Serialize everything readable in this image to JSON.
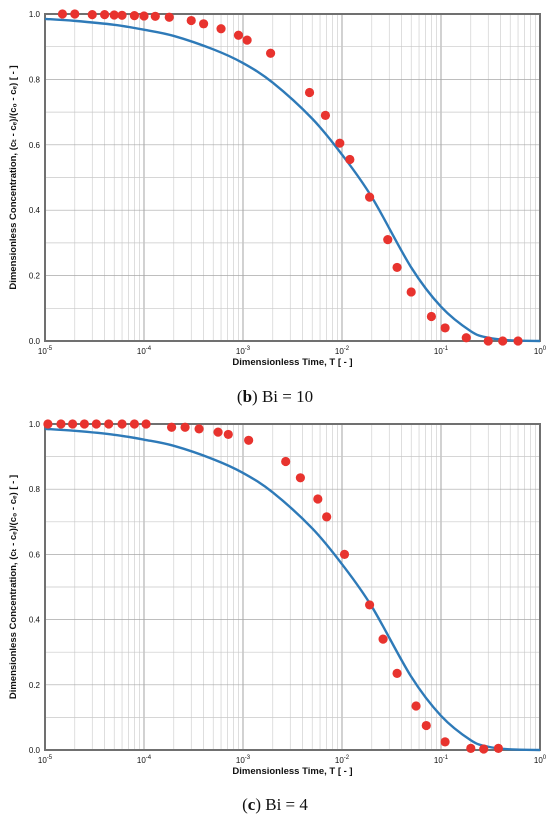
{
  "chart_data": [
    {
      "type": "scatter",
      "caption_letter": "b",
      "caption_rest": ") Bi = 10",
      "xlabel": "Dimensionless Time, T  [ - ]",
      "ylabel": "Dimensionless Concentration, (cₜ - cₑ)/(c₀ - cₑ)  [ - ]",
      "x_scale": "log",
      "xlim": [
        1e-05,
        1
      ],
      "ylim": [
        0,
        1
      ],
      "grid": true,
      "x_ticks": [
        {
          "value": 1e-05,
          "base": "10",
          "exp": "-5"
        },
        {
          "value": 0.0001,
          "base": "10",
          "exp": "-4"
        },
        {
          "value": 0.001,
          "base": "10",
          "exp": "-3"
        },
        {
          "value": 0.01,
          "base": "10",
          "exp": "-2"
        },
        {
          "value": 0.1,
          "base": "10",
          "exp": "-1"
        },
        {
          "value": 1,
          "base": "10",
          "exp": "0"
        }
      ],
      "y_ticks": [
        "0.0",
        "0.2",
        "0.4",
        "0.6",
        "0.8",
        "1.0"
      ],
      "series": [
        {
          "kind": "line",
          "color": "#2e7ab8",
          "x": [
            1e-05,
            2e-05,
            5e-05,
            0.0001,
            0.0002,
            0.0005,
            0.001,
            0.002,
            0.005,
            0.01,
            0.02,
            0.05,
            0.1,
            0.2,
            0.3,
            0.5,
            1
          ],
          "y": [
            0.985,
            0.979,
            0.967,
            0.952,
            0.933,
            0.892,
            0.85,
            0.79,
            0.68,
            0.57,
            0.44,
            0.225,
            0.105,
            0.03,
            0.01,
            0.002,
            0.0
          ]
        },
        {
          "kind": "points",
          "color": "#e8332e",
          "x": [
            1.5e-05,
            2e-05,
            3e-05,
            4e-05,
            5e-05,
            6e-05,
            8e-05,
            0.0001,
            0.00013,
            0.00018,
            0.0003,
            0.0004,
            0.0006,
            0.0009,
            0.0011,
            0.0019,
            0.0047,
            0.0068,
            0.0095,
            0.012,
            0.019,
            0.029,
            0.036,
            0.05,
            0.08,
            0.11,
            0.18,
            0.3,
            0.42,
            0.6
          ],
          "y": [
            1.0,
            1.0,
            0.998,
            0.998,
            0.997,
            0.996,
            0.995,
            0.994,
            0.993,
            0.99,
            0.98,
            0.97,
            0.955,
            0.935,
            0.92,
            0.88,
            0.76,
            0.69,
            0.605,
            0.555,
            0.44,
            0.31,
            0.225,
            0.15,
            0.075,
            0.04,
            0.01,
            0.0,
            0.0,
            0.0
          ]
        }
      ]
    },
    {
      "type": "scatter",
      "caption_letter": "c",
      "caption_rest": ") Bi = 4",
      "xlabel": "Dimensionless Time, T  [ - ]",
      "ylabel": "Dimensionless Concentration, (cₜ - cₑ)/(c₀ - cₑ)  [ - ]",
      "x_scale": "log",
      "xlim": [
        1e-05,
        1
      ],
      "ylim": [
        0,
        1
      ],
      "grid": true,
      "x_ticks": [
        {
          "value": 1e-05,
          "base": "10",
          "exp": "-5"
        },
        {
          "value": 0.0001,
          "base": "10",
          "exp": "-4"
        },
        {
          "value": 0.001,
          "base": "10",
          "exp": "-3"
        },
        {
          "value": 0.01,
          "base": "10",
          "exp": "-2"
        },
        {
          "value": 0.1,
          "base": "10",
          "exp": "-1"
        },
        {
          "value": 1,
          "base": "10",
          "exp": "0"
        }
      ],
      "y_ticks": [
        "0.0",
        "0.2",
        "0.4",
        "0.6",
        "0.8",
        "1.0"
      ],
      "series": [
        {
          "kind": "line",
          "color": "#2e7ab8",
          "x": [
            1e-05,
            2e-05,
            5e-05,
            0.0001,
            0.0002,
            0.0005,
            0.001,
            0.002,
            0.005,
            0.01,
            0.02,
            0.05,
            0.1,
            0.2,
            0.3,
            0.5,
            1
          ],
          "y": [
            0.985,
            0.979,
            0.967,
            0.952,
            0.933,
            0.892,
            0.85,
            0.79,
            0.68,
            0.57,
            0.44,
            0.225,
            0.105,
            0.03,
            0.01,
            0.002,
            0.0
          ]
        },
        {
          "kind": "points",
          "color": "#e8332e",
          "x": [
            1.07e-05,
            1.45e-05,
            1.9e-05,
            2.5e-05,
            3.3e-05,
            4.4e-05,
            6e-05,
            8e-05,
            0.000105,
            0.00019,
            0.00026,
            0.00036,
            0.00056,
            0.00071,
            0.00114,
            0.0027,
            0.0038,
            0.0057,
            0.007,
            0.0106,
            0.019,
            0.026,
            0.036,
            0.056,
            0.071,
            0.11,
            0.2,
            0.27,
            0.38
          ],
          "y": [
            1.0,
            1.0,
            1.0,
            1.0,
            1.0,
            1.0,
            1.0,
            1.0,
            1.0,
            0.99,
            0.99,
            0.985,
            0.975,
            0.968,
            0.95,
            0.885,
            0.835,
            0.77,
            0.715,
            0.6,
            0.445,
            0.34,
            0.235,
            0.135,
            0.075,
            0.025,
            0.005,
            0.003,
            0.005
          ]
        }
      ]
    }
  ]
}
